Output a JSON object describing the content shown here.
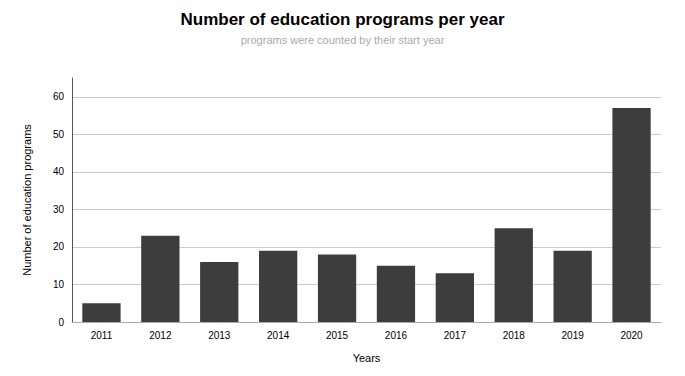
{
  "chart_data": {
    "type": "bar",
    "title": "Number of education programs per year",
    "subtitle": "programs were counted by their start year",
    "xlabel": "Years",
    "ylabel": "Number of education programs",
    "categories": [
      "2011",
      "2012",
      "2013",
      "2014",
      "2015",
      "2016",
      "2017",
      "2018",
      "2019",
      "2020"
    ],
    "values": [
      5,
      23,
      16,
      19,
      18,
      15,
      13,
      25,
      19,
      57
    ],
    "color": "#3d3d3d",
    "ylim": [
      0,
      65
    ],
    "yticks": [
      0,
      10,
      20,
      30,
      40,
      50,
      60
    ],
    "grid": true
  }
}
